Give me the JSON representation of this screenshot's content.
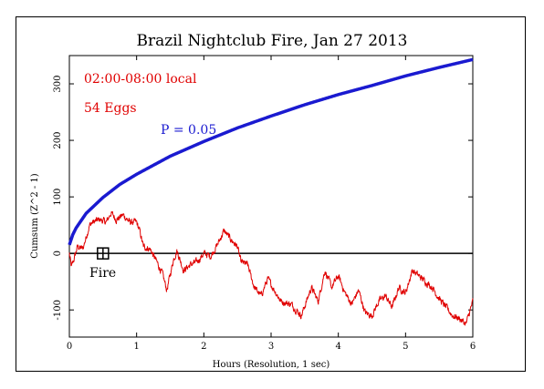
{
  "chart_data": {
    "type": "line",
    "title": "Brazil Nightclub Fire, Jan 27 2013",
    "xlabel": "Hours (Resolution, 1 sec)",
    "ylabel": "Cumsum (Z^2 - 1)",
    "xlim": [
      0,
      6
    ],
    "ylim": [
      -148,
      350
    ],
    "x_ticks": [
      0,
      1,
      2,
      3,
      4,
      5,
      6
    ],
    "y_ticks": [
      -100,
      0,
      100,
      200,
      300
    ],
    "grid": false,
    "annotations": {
      "time_window": "02:00-08:00 local",
      "eggs": "54 Eggs",
      "probability": "P = 0.05",
      "event_label": "Fire"
    },
    "event_marker_x": 0.5,
    "series": [
      {
        "color": "#1a1ad0",
        "style": "envelope",
        "x": [
          0,
          0.05,
          0.1,
          0.25,
          0.5,
          0.75,
          1,
          1.5,
          2,
          2.5,
          3,
          3.5,
          4,
          4.5,
          5,
          5.5,
          6
        ],
        "values": [
          15,
          33,
          45,
          71,
          99,
          122,
          140,
          172,
          198,
          222,
          243,
          263,
          281,
          297,
          314,
          329,
          343
        ]
      },
      {
        "color": "#e00000",
        "style": "cumsum",
        "x": [
          0,
          0.03,
          0.07,
          0.12,
          0.2,
          0.3,
          0.35,
          0.45,
          0.55,
          0.62,
          0.7,
          0.8,
          0.9,
          1.0,
          1.05,
          1.1,
          1.2,
          1.3,
          1.38,
          1.45,
          1.55,
          1.6,
          1.7,
          1.8,
          1.9,
          2.0,
          2.1,
          2.2,
          2.3,
          2.4,
          2.5,
          2.55,
          2.65,
          2.75,
          2.85,
          2.95,
          3.05,
          3.15,
          3.3,
          3.45,
          3.6,
          3.7,
          3.8,
          3.9,
          4.0,
          4.1,
          4.2,
          4.3,
          4.4,
          4.5,
          4.6,
          4.7,
          4.8,
          4.9,
          5.0,
          5.1,
          5.2,
          5.3,
          5.4,
          5.5,
          5.6,
          5.7,
          5.8,
          5.9,
          6.0
        ],
        "values": [
          0,
          -25,
          -10,
          12,
          8,
          50,
          55,
          60,
          55,
          72,
          60,
          68,
          55,
          55,
          38,
          12,
          8,
          -15,
          -35,
          -65,
          -10,
          5,
          -30,
          -20,
          -15,
          0,
          -5,
          15,
          40,
          25,
          12,
          -15,
          -20,
          -60,
          -75,
          -45,
          -65,
          -85,
          -90,
          -110,
          -60,
          -85,
          -30,
          -60,
          -40,
          -70,
          -90,
          -65,
          -105,
          -110,
          -85,
          -75,
          -95,
          -60,
          -70,
          -30,
          -40,
          -50,
          -60,
          -80,
          -95,
          -110,
          -115,
          -125,
          -85
        ]
      }
    ]
  }
}
